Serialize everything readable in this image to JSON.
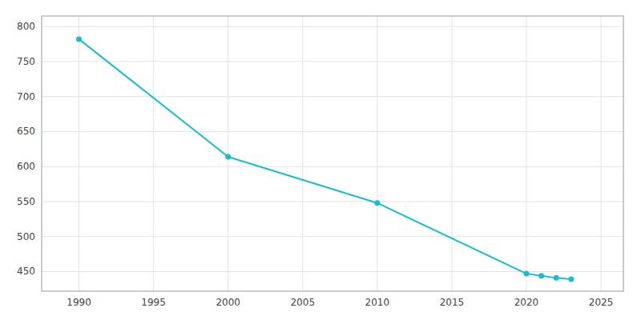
{
  "chart_data": {
    "type": "line",
    "x": [
      1990,
      2000,
      2010,
      2020,
      2021,
      2022,
      2023
    ],
    "values": [
      782,
      614,
      548,
      447,
      444,
      441,
      439
    ],
    "color": "#17BECF",
    "marker": "circle",
    "xlim": [
      1987.5,
      2026.5
    ],
    "ylim": [
      422,
      815
    ],
    "xticks": [
      1990,
      1995,
      2000,
      2005,
      2010,
      2015,
      2020,
      2025
    ],
    "yticks": [
      450,
      500,
      550,
      600,
      650,
      700,
      750,
      800
    ],
    "grid": true
  }
}
